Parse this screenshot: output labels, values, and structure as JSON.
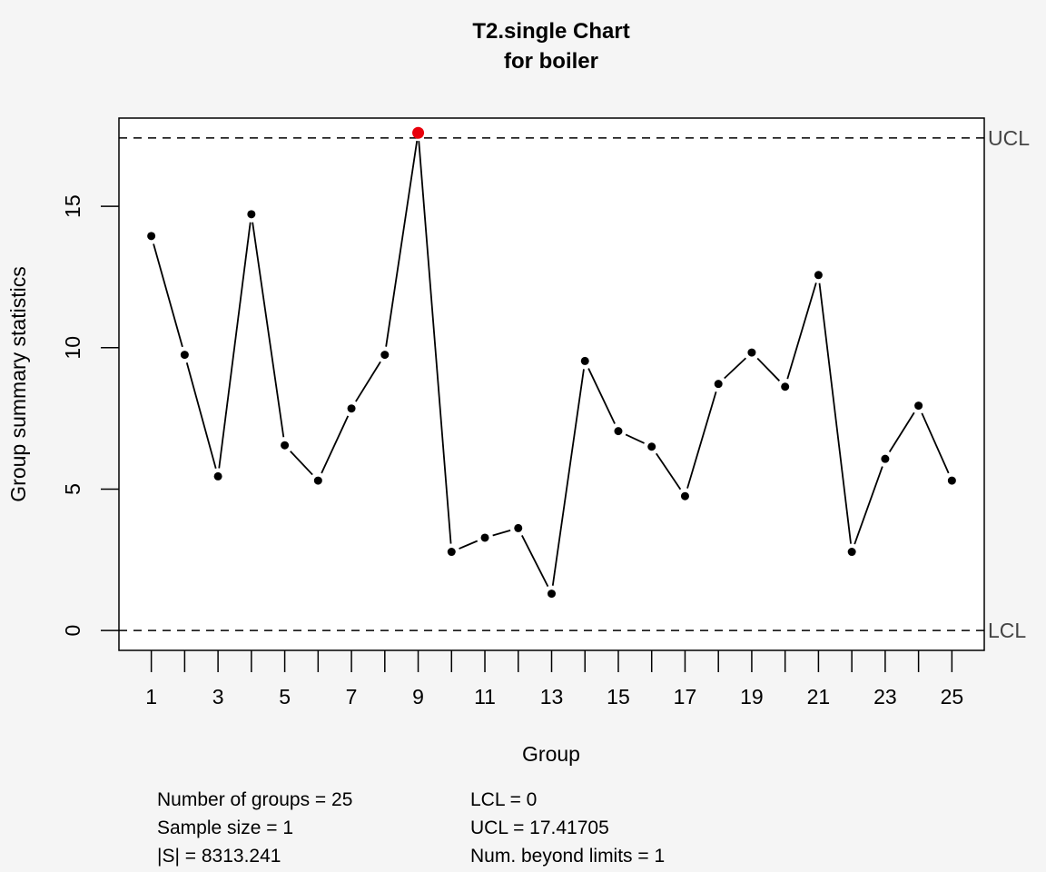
{
  "chart_data": {
    "type": "line",
    "title": "T2.single Chart",
    "subtitle": "for boiler",
    "xlabel": "Group",
    "ylabel": "Group summary statistics",
    "x": [
      1,
      2,
      3,
      4,
      5,
      6,
      7,
      8,
      9,
      10,
      11,
      12,
      13,
      14,
      15,
      16,
      17,
      18,
      19,
      20,
      21,
      22,
      23,
      24,
      25
    ],
    "values": [
      13.95,
      9.75,
      5.45,
      14.72,
      6.55,
      5.3,
      7.85,
      9.75,
      17.6,
      2.78,
      3.28,
      3.62,
      1.3,
      9.53,
      7.05,
      6.5,
      4.75,
      8.72,
      9.83,
      8.62,
      12.57,
      2.78,
      6.07,
      7.95,
      5.3
    ],
    "xticks": [
      1,
      3,
      5,
      7,
      9,
      11,
      13,
      15,
      17,
      19,
      21,
      23,
      25
    ],
    "yticks": [
      0,
      5,
      10,
      15
    ],
    "xlim": [
      0.03,
      25.97
    ],
    "ylim": [
      -0.704,
      18.121
    ],
    "ucl": 17.41705,
    "lcl": 0,
    "ucl_label": "UCL",
    "lcl_label": "LCL",
    "out_of_limits_index": [
      8
    ],
    "grid": false,
    "colors": {
      "point": "#000000",
      "violation": "#e8000b",
      "line": "#000000",
      "limit_line": "#000000",
      "limit_label": "#444444",
      "background": "#f5f5f5",
      "plot_background": "#ffffff"
    }
  },
  "stats": {
    "left": [
      "Number of groups = 25",
      "Sample size = 1",
      "|S| = 8313.241"
    ],
    "right": [
      "LCL = 0",
      "UCL = 17.41705",
      "Num. beyond limits = 1"
    ]
  }
}
